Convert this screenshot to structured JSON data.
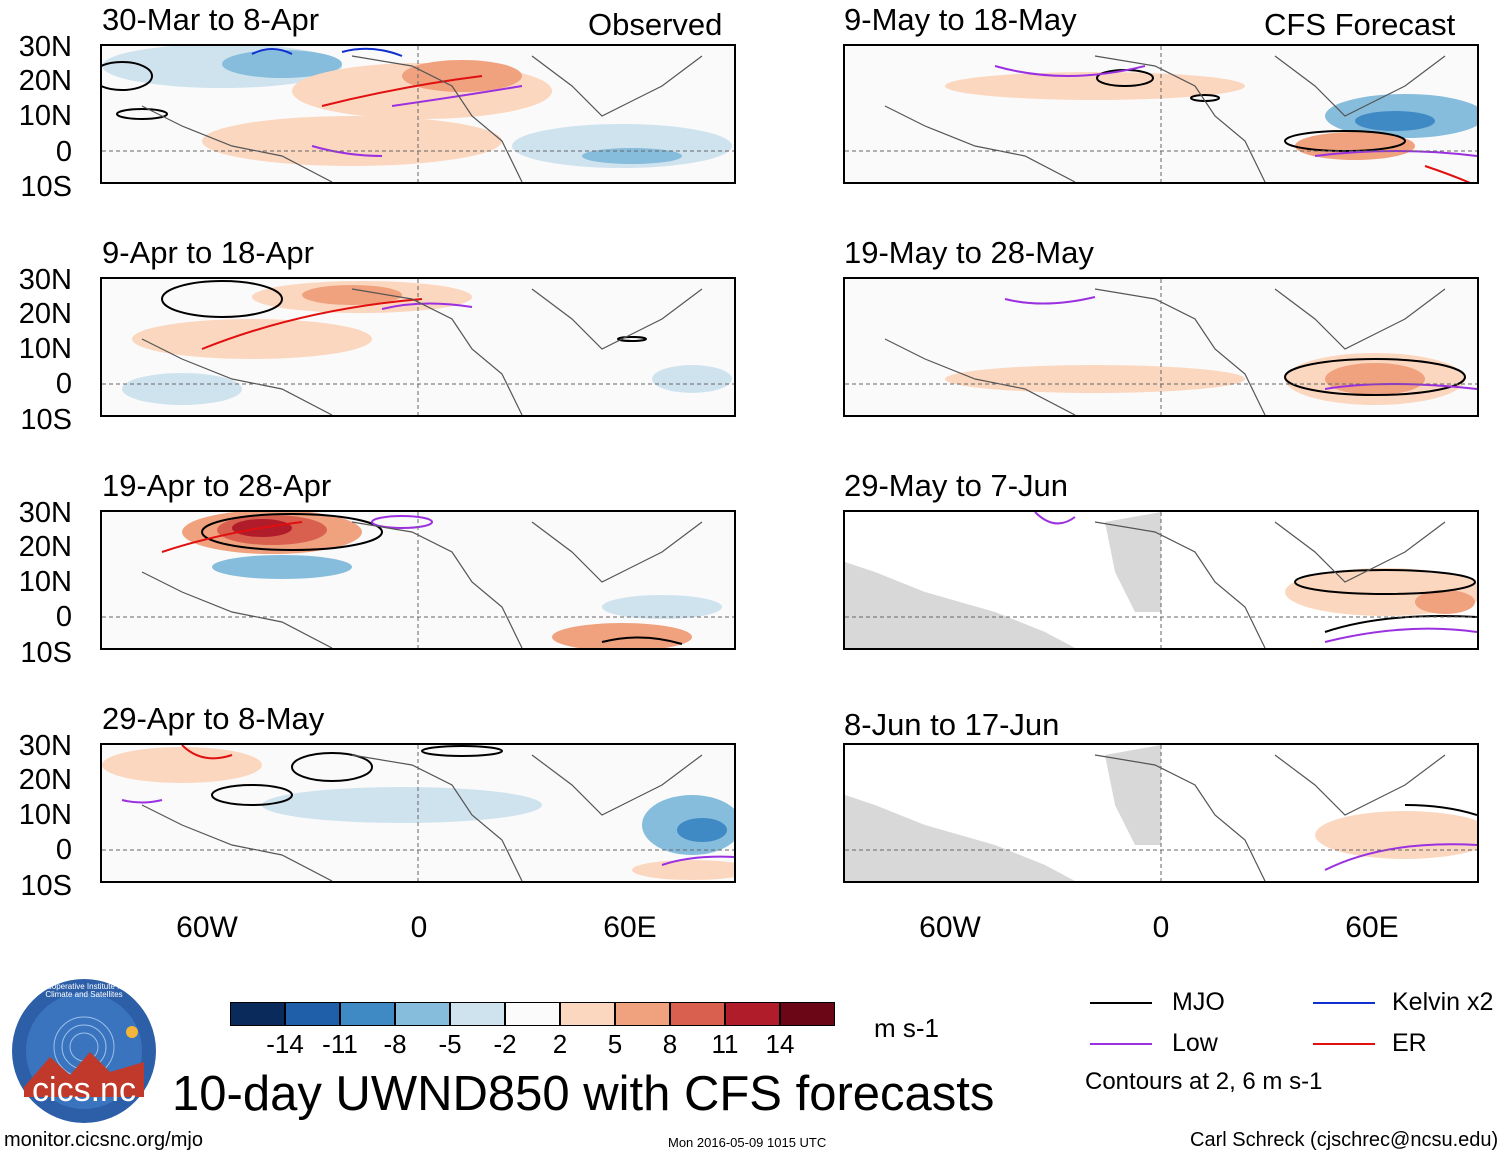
{
  "columns": {
    "left_title": "Observed",
    "right_title": "CFS Forecast"
  },
  "panels_left": [
    {
      "title": "30-Mar to 8-Apr"
    },
    {
      "title": "9-Apr to 18-Apr"
    },
    {
      "title": "19-Apr to 28-Apr"
    },
    {
      "title": "29-Apr to 8-May"
    }
  ],
  "panels_right": [
    {
      "title": "9-May to 18-May"
    },
    {
      "title": "19-May to 28-May"
    },
    {
      "title": "29-May to 7-Jun"
    },
    {
      "title": "8-Jun to 17-Jun"
    }
  ],
  "lat_labels": [
    "30N",
    "20N",
    "10N",
    "0",
    "10S"
  ],
  "lon_labels": [
    "60W",
    "0",
    "60E"
  ],
  "colorbar": {
    "labels": [
      "-14",
      "-11",
      "-8",
      "-5",
      "-2",
      "2",
      "5",
      "8",
      "11",
      "14"
    ],
    "colors": [
      "#0b2a5c",
      "#1f5ea8",
      "#3f8ac4",
      "#86bcdc",
      "#cfe3ef",
      "#fbfbfb",
      "#fcd7bf",
      "#f0a17e",
      "#d9604f",
      "#b11c2a",
      "#6b0617"
    ],
    "units": "m s-1"
  },
  "legend": {
    "mjo": "MJO",
    "low": "Low",
    "kelvin": "Kelvin x2",
    "er": "ER",
    "contours": "Contours at 2, 6 m s-1",
    "colors": {
      "mjo": "#000000",
      "low": "#9b30e0",
      "kelvin": "#1030d0",
      "er": "#e01010"
    }
  },
  "main_title": "10-day UWND850 with CFS forecasts",
  "logo_text": "cics.nc",
  "logo_ring_text": "Cooperative Institute for Climate and Satellites",
  "footer": {
    "url": "monitor.cicsnc.org/mjo",
    "timestamp": "Mon 2016-05-09 1015 UTC",
    "author": "Carl Schreck (cjschrec@ncsu.edu)"
  }
}
